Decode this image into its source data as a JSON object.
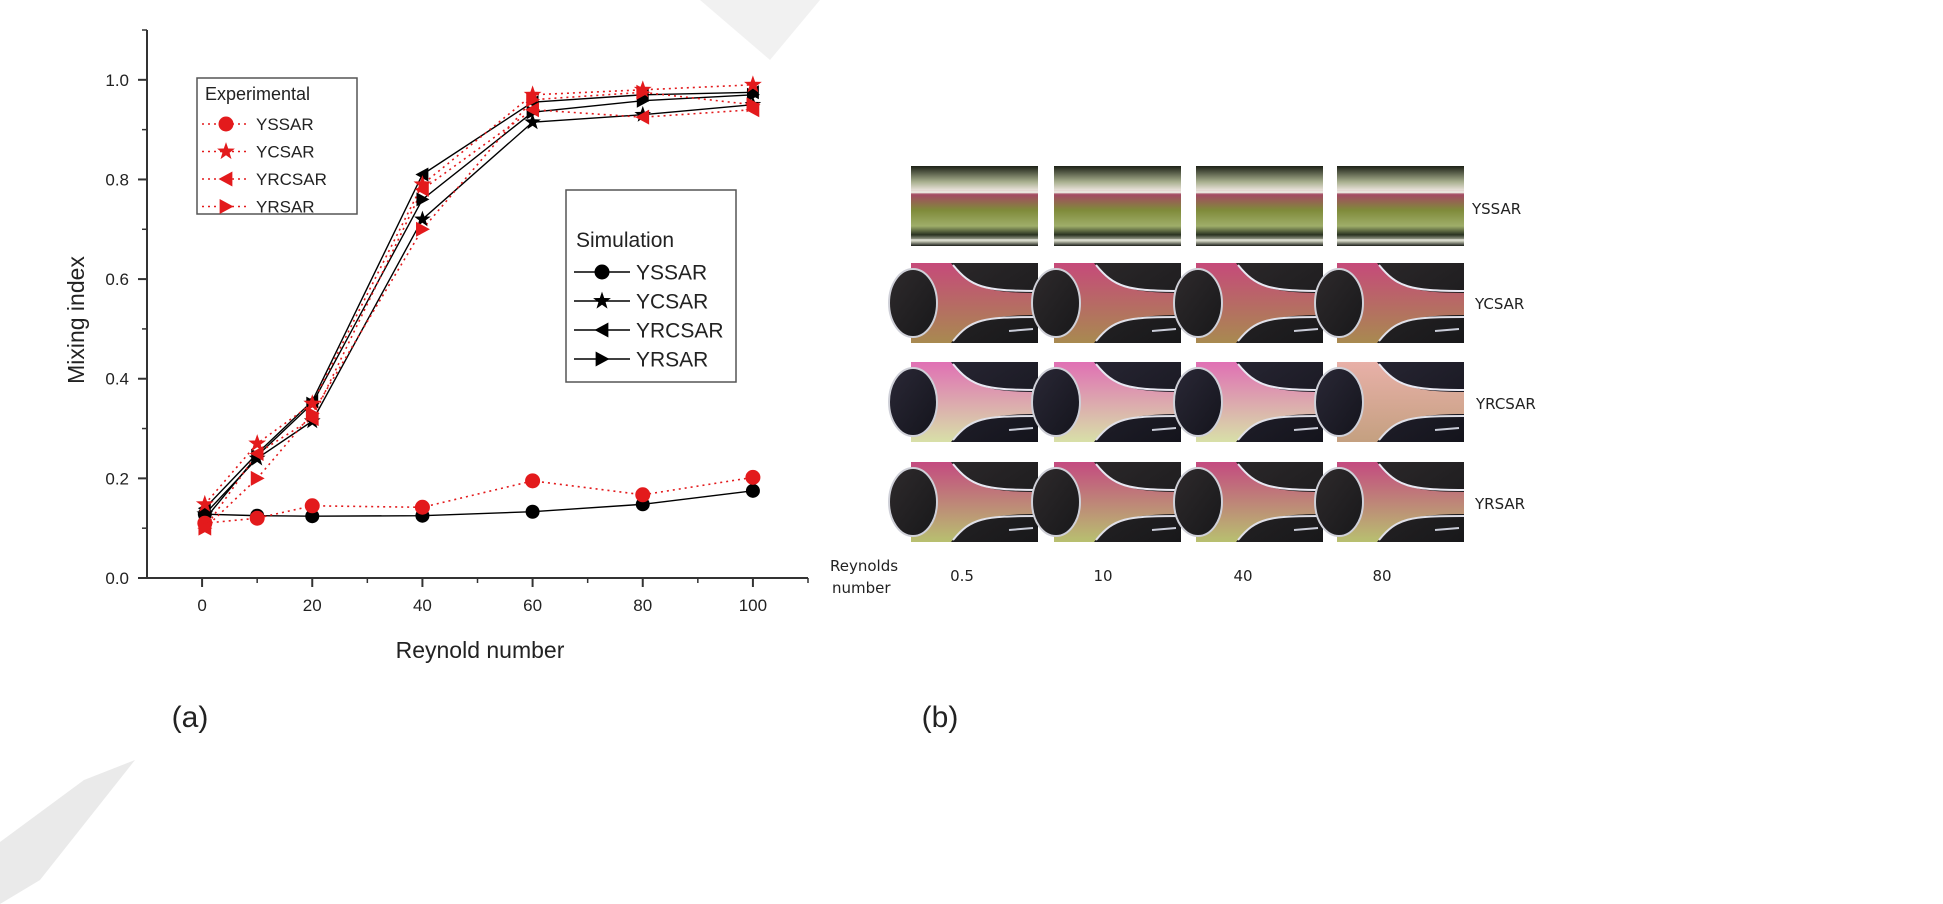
{
  "panels": {
    "a_label": "(a)",
    "b_label": "(b)"
  },
  "chart_data": {
    "type": "line",
    "xlabel": "Reynold number",
    "ylabel": "Mixing index",
    "xlim": [
      -10,
      110
    ],
    "ylim": [
      0,
      1.1
    ],
    "x_ticks": [
      0,
      20,
      40,
      60,
      80,
      100
    ],
    "y_ticks": [
      0.0,
      0.2,
      0.4,
      0.6,
      0.8,
      1.0
    ],
    "y_tick_labels": [
      "0.0",
      "0.2",
      "0.4",
      "0.6",
      "0.8",
      "1.0"
    ],
    "grid": false,
    "x": [
      0.5,
      10,
      20,
      40,
      60,
      80,
      100
    ],
    "legends": [
      {
        "title": "Experimental",
        "placement": "upper-left",
        "style": "dotted",
        "color": "#e31a1c",
        "entries": [
          "YSSAR",
          "YCSAR",
          "YRCSAR",
          "YRSAR"
        ]
      },
      {
        "title": "Simulation",
        "placement": "center-right",
        "style": "solid",
        "color": "#000000",
        "entries": [
          "YSSAR",
          "YCSAR",
          "YRCSAR",
          "YRSAR"
        ]
      }
    ],
    "series": [
      {
        "name": "YSSAR",
        "group": "Experimental",
        "marker": "circle",
        "color": "#e31a1c",
        "style": "dotted",
        "values": [
          0.11,
          0.12,
          0.145,
          0.142,
          0.195,
          0.167,
          0.202
        ]
      },
      {
        "name": "YCSAR",
        "group": "Experimental",
        "marker": "star",
        "color": "#e31a1c",
        "style": "dotted",
        "values": [
          0.148,
          0.27,
          0.35,
          0.79,
          0.97,
          0.98,
          0.99
        ]
      },
      {
        "name": "YRCSAR",
        "group": "Experimental",
        "marker": "triangle-left",
        "color": "#e31a1c",
        "style": "dotted",
        "values": [
          0.1,
          0.25,
          0.32,
          0.78,
          0.94,
          0.925,
          0.94
        ]
      },
      {
        "name": "YRSAR",
        "group": "Experimental",
        "marker": "triangle-right",
        "color": "#e31a1c",
        "style": "dotted",
        "values": [
          0.1,
          0.2,
          0.33,
          0.7,
          0.96,
          0.975,
          0.95
        ]
      },
      {
        "name": "YSSAR",
        "group": "Simulation",
        "marker": "circle",
        "color": "#000000",
        "style": "solid",
        "values": [
          0.128,
          0.125,
          0.124,
          0.125,
          0.133,
          0.148,
          0.175
        ]
      },
      {
        "name": "YCSAR",
        "group": "Simulation",
        "marker": "star",
        "color": "#000000",
        "style": "solid",
        "values": [
          0.128,
          0.24,
          0.315,
          0.72,
          0.915,
          0.93,
          0.95
        ]
      },
      {
        "name": "YRCSAR",
        "group": "Simulation",
        "marker": "triangle-left",
        "color": "#000000",
        "style": "solid",
        "values": [
          0.14,
          0.25,
          0.355,
          0.81,
          0.955,
          0.97,
          0.975
        ]
      },
      {
        "name": "YRSAR",
        "group": "Simulation",
        "marker": "triangle-right",
        "color": "#000000",
        "style": "solid",
        "values": [
          0.118,
          0.245,
          0.35,
          0.76,
          0.935,
          0.958,
          0.97
        ]
      }
    ]
  },
  "photo_grid": {
    "row_labels": [
      "YSSAR",
      "YCSAR",
      "YRCSAR",
      "YRSAR"
    ],
    "column_header": [
      "Reynolds",
      "number"
    ],
    "column_labels": [
      "0.5",
      "10",
      "40",
      "80"
    ]
  }
}
